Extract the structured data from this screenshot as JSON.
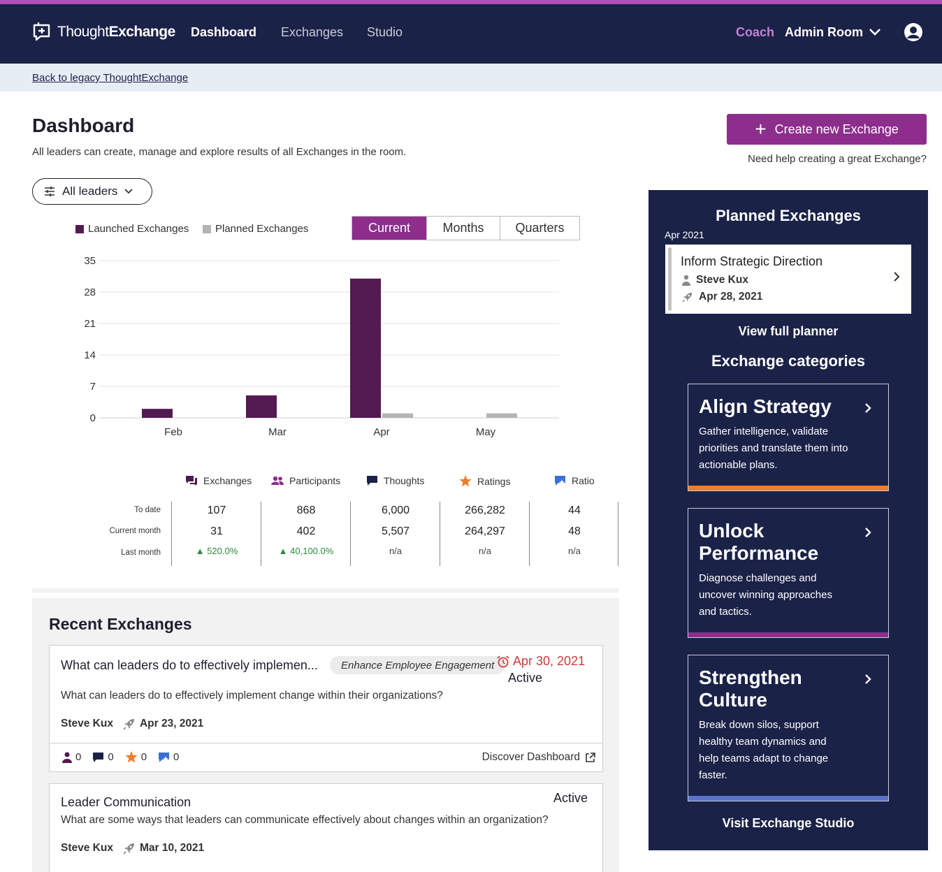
{
  "brand": {
    "name_light": "Thought",
    "name_bold": "Exchange"
  },
  "nav": {
    "dashboard": "Dashboard",
    "exchanges": "Exchanges",
    "studio": "Studio",
    "coach": "Coach",
    "room": "Admin Room"
  },
  "legacy_link": "Back to legacy ThoughtExchange",
  "page": {
    "title": "Dashboard",
    "subtitle": "All leaders can create, manage and explore results of all Exchanges in the room.",
    "create_label": "Create new Exchange",
    "help_label": "Need help creating a great Exchange?",
    "filter_label": "All leaders"
  },
  "legend": {
    "launched": "Launched Exchanges",
    "planned": "Planned Exchanges"
  },
  "segments": {
    "current": "Current",
    "months": "Months",
    "quarters": "Quarters"
  },
  "colors": {
    "brand": "#8d2e8d",
    "navy": "#1b2248",
    "launched": "#531a52",
    "planned": "#b4b4b4",
    "orange": "#f07d2a",
    "purple": "#8d2e8d",
    "blue": "#5a73c9"
  },
  "chart_data": {
    "type": "bar",
    "categories": [
      "Feb",
      "Mar",
      "Apr",
      "May"
    ],
    "series": [
      {
        "name": "Launched Exchanges",
        "values": [
          2,
          5,
          31,
          0
        ]
      },
      {
        "name": "Planned Exchanges",
        "values": [
          0,
          0,
          1,
          1
        ]
      }
    ],
    "yticks": [
      0,
      7,
      14,
      21,
      28,
      35
    ],
    "ylim": [
      0,
      35
    ],
    "grid": true,
    "legend": "top-left"
  },
  "stats": {
    "row_labels": [
      "To date",
      "Current month",
      "Last month"
    ],
    "columns": [
      {
        "label": "Exchanges",
        "icon": "exchanges-icon",
        "to_date": "107",
        "current": "31",
        "last": "520.0%",
        "last_up": true
      },
      {
        "label": "Participants",
        "icon": "participants-icon",
        "to_date": "868",
        "current": "402",
        "last": "40,100.0%",
        "last_up": true
      },
      {
        "label": "Thoughts",
        "icon": "thoughts-icon",
        "to_date": "6,000",
        "current": "5,507",
        "last": "n/a",
        "last_up": false
      },
      {
        "label": "Ratings",
        "icon": "star-icon",
        "to_date": "266,282",
        "current": "264,297",
        "last": "n/a",
        "last_up": false
      },
      {
        "label": "Ratio",
        "icon": "ratio-icon",
        "to_date": "44",
        "current": "48",
        "last": "n/a",
        "last_up": false
      }
    ]
  },
  "recent": {
    "title": "Recent Exchanges",
    "items": [
      {
        "title": "What can leaders do to effectively implemen...",
        "tag": "Enhance Employee Engagement",
        "due": "Apr 30, 2021",
        "status": "Active",
        "question": "What can leaders do to effectively implement change within their organizations?",
        "author": "Steve Kux",
        "launched": "Apr 23, 2021",
        "participants": "0",
        "thoughts": "0",
        "ratings": "0",
        "ratio": "0",
        "discover_label": "Discover Dashboard"
      },
      {
        "title": "Leader Communication",
        "status": "Active",
        "question": "What are some ways that leaders can communicate effectively about changes within an organization?",
        "author": "Steve Kux",
        "launched": "Mar 10, 2021"
      }
    ]
  },
  "panel": {
    "title": "Planned Exchanges",
    "month": "Apr 2021",
    "planned": {
      "title": "Inform Strategic Direction",
      "author": "Steve Kux",
      "date": "Apr 28, 2021"
    },
    "view_full": "View full planner",
    "categories_title": "Exchange categories",
    "categories": [
      {
        "name": "Align Strategy",
        "desc": "Gather intelligence, validate priorities and translate them into actionable plans.",
        "color": "#f07d2a"
      },
      {
        "name": "Unlock Performance",
        "desc": "Diagnose challenges and uncover winning approaches and tactics.",
        "color": "#8d2e8d"
      },
      {
        "name": "Strengthen Culture",
        "desc": "Break down silos, support healthy team dynamics and help teams adapt to change faster.",
        "color": "#5a73c9"
      }
    ],
    "visit": "Visit Exchange Studio"
  }
}
